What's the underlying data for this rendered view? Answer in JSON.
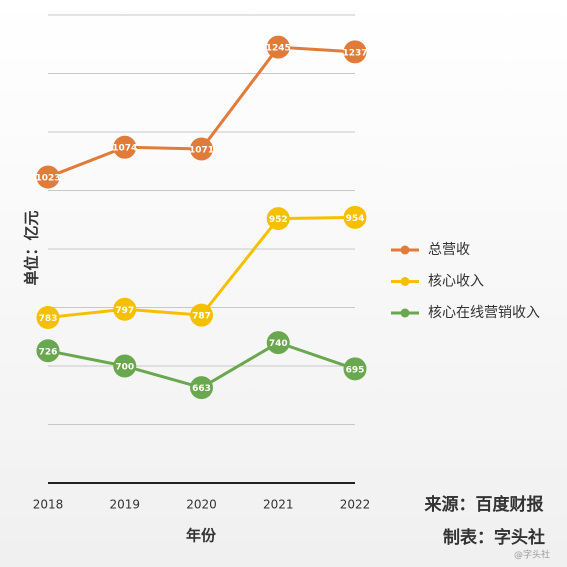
{
  "chart_data": {
    "type": "line",
    "y_label": "单位：亿元",
    "x_label": "年份",
    "source": "来源：百度财报",
    "maker": "制表：字头社",
    "watermark": "@字头社",
    "categories": [
      "2018",
      "2019",
      "2020",
      "2021",
      "2022"
    ],
    "series": [
      {
        "name": "总营收",
        "color": "#e07b39",
        "values": [
          1023,
          1074,
          1071,
          1245,
          1237
        ]
      },
      {
        "name": "核心收入",
        "color": "#f5c000",
        "values": [
          783,
          797,
          787,
          952,
          954
        ]
      },
      {
        "name": "核心在线营销收入",
        "color": "#6aa84f",
        "values": [
          726,
          700,
          663,
          740,
          695
        ]
      }
    ],
    "ylim": [
      500,
      1300
    ],
    "yticks": [
      500,
      600,
      700,
      800,
      900,
      1000,
      1100,
      1200,
      1300
    ],
    "grid": true
  }
}
